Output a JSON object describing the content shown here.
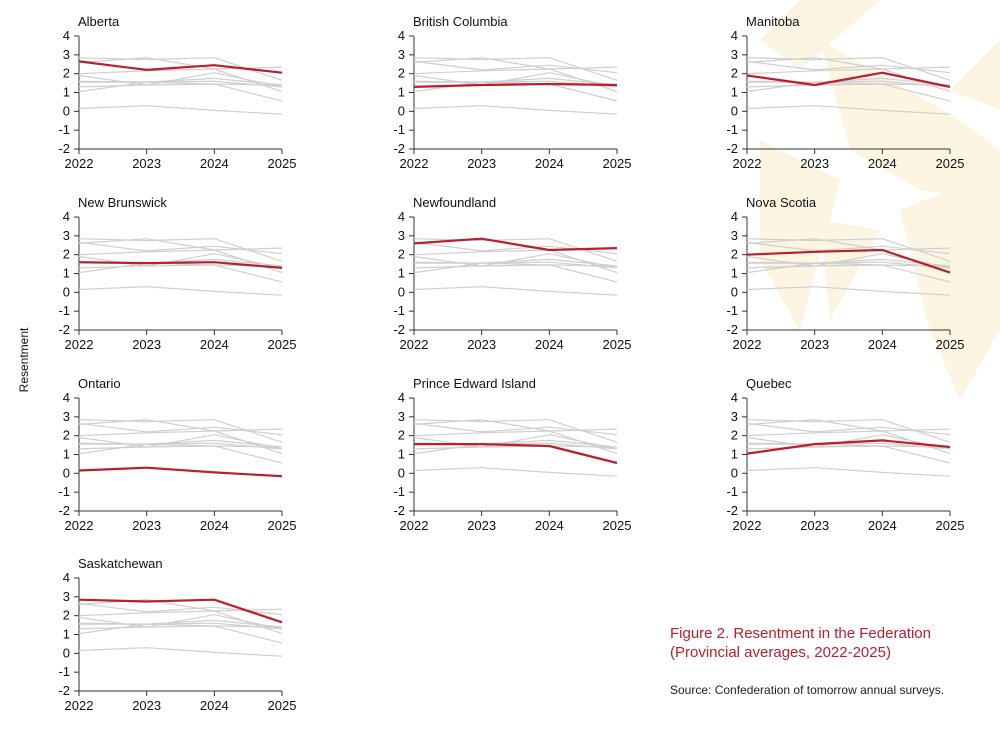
{
  "figure": {
    "title": "Figure 2. Resentment in the Federation (Provincial averages, 2022-2025)",
    "source": "Source: Confederation of tomorrow annual surveys.",
    "y_axis_label": "Resentment"
  },
  "colors": {
    "highlight": "#b8202e",
    "context": "#cfcfcf",
    "axis": "#333333",
    "background_shape": "#fbf5e2"
  },
  "chart_data": {
    "type": "line",
    "title": "Figure 2. Resentment in the Federation (Provincial averages, 2022-2025)",
    "ylabel": "Resentment",
    "xlabel": "",
    "x": [
      "2022",
      "2023",
      "2024",
      "2025"
    ],
    "yticks": [
      "4",
      "3",
      "2",
      "1",
      "0",
      "-1",
      "-2"
    ],
    "ylim": [
      -2,
      4
    ],
    "series": [
      {
        "name": "Alberta",
        "values": [
          2.65,
          2.2,
          2.45,
          2.05
        ]
      },
      {
        "name": "British Columbia",
        "values": [
          1.3,
          1.4,
          1.45,
          1.4
        ]
      },
      {
        "name": "Manitoba",
        "values": [
          1.9,
          1.4,
          2.05,
          1.3
        ]
      },
      {
        "name": "New Brunswick",
        "values": [
          1.6,
          1.55,
          1.6,
          1.3
        ]
      },
      {
        "name": "Newfoundland",
        "values": [
          2.6,
          2.85,
          2.25,
          2.35
        ]
      },
      {
        "name": "Nova Scotia",
        "values": [
          2.0,
          2.15,
          2.25,
          1.05
        ]
      },
      {
        "name": "Ontario",
        "values": [
          0.15,
          0.3,
          0.05,
          -0.15
        ]
      },
      {
        "name": "Prince Edward Island",
        "values": [
          1.55,
          1.55,
          1.45,
          0.55
        ]
      },
      {
        "name": "Quebec",
        "values": [
          1.05,
          1.55,
          1.75,
          1.4
        ]
      },
      {
        "name": "Saskatchewan",
        "values": [
          2.85,
          2.75,
          2.85,
          1.65
        ]
      }
    ]
  }
}
